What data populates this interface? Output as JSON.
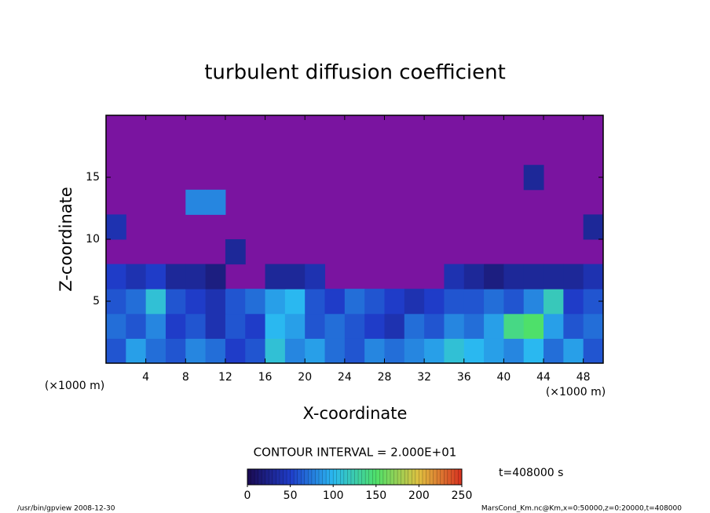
{
  "chart_data": {
    "type": "heatmap",
    "title": "turbulent diffusion coefficient",
    "x_label": "X-coordinate",
    "y_label": "Z-coordinate",
    "x_unit_label": "(×1000 m)",
    "xlim": [
      0,
      50
    ],
    "xticks": [
      4,
      8,
      12,
      16,
      20,
      24,
      28,
      32,
      36,
      40,
      44,
      48
    ],
    "ylim": [
      0,
      20
    ],
    "yticks": [
      5,
      10,
      15
    ],
    "z": [
      [
        60,
        90,
        70,
        60,
        80,
        70,
        50,
        60,
        110,
        80,
        90,
        70,
        60,
        80,
        70,
        80,
        90,
        110,
        100,
        90,
        80,
        100,
        70,
        90,
        60
      ],
      [
        70,
        60,
        80,
        50,
        60,
        40,
        60,
        50,
        100,
        90,
        60,
        70,
        60,
        50,
        40,
        70,
        60,
        80,
        70,
        90,
        140,
        150,
        90,
        60,
        70
      ],
      [
        60,
        70,
        110,
        60,
        50,
        40,
        60,
        70,
        90,
        100,
        60,
        50,
        70,
        60,
        50,
        40,
        50,
        60,
        60,
        70,
        60,
        80,
        120,
        50,
        60
      ],
      [
        50,
        40,
        50,
        30,
        30,
        20,
        null,
        null,
        30,
        30,
        40,
        null,
        null,
        null,
        null,
        null,
        null,
        40,
        30,
        20,
        30,
        30,
        30,
        30,
        40
      ],
      [
        null,
        null,
        null,
        null,
        null,
        null,
        30,
        null,
        null,
        null,
        null,
        null,
        null,
        null,
        null,
        null,
        null,
        null,
        null,
        null,
        null,
        null,
        null,
        null,
        null
      ],
      [
        40,
        null,
        null,
        null,
        null,
        null,
        null,
        null,
        null,
        null,
        null,
        null,
        null,
        null,
        null,
        null,
        null,
        null,
        null,
        null,
        null,
        null,
        null,
        null,
        30
      ],
      [
        null,
        null,
        null,
        null,
        80,
        80,
        null,
        null,
        null,
        null,
        null,
        null,
        null,
        null,
        null,
        null,
        null,
        null,
        null,
        null,
        null,
        null,
        null,
        null,
        null
      ],
      [
        null,
        null,
        null,
        null,
        null,
        null,
        null,
        null,
        null,
        null,
        null,
        null,
        null,
        null,
        null,
        null,
        null,
        null,
        null,
        null,
        null,
        30,
        null,
        null,
        null
      ],
      [
        null,
        null,
        null,
        null,
        null,
        null,
        null,
        null,
        null,
        null,
        null,
        null,
        null,
        null,
        null,
        null,
        null,
        null,
        null,
        null,
        null,
        null,
        null,
        null,
        null
      ],
      [
        null,
        null,
        null,
        null,
        null,
        null,
        null,
        null,
        null,
        null,
        null,
        null,
        null,
        null,
        null,
        null,
        null,
        null,
        null,
        null,
        null,
        null,
        null,
        null,
        null
      ]
    ],
    "zlim": [
      0,
      250
    ],
    "zticks": [
      0,
      50,
      100,
      150,
      200,
      250
    ],
    "colormap": [
      "#1a0a50",
      "#1f3cc8",
      "#2ab8f0",
      "#4ee06a",
      "#e0c040",
      "#d83020"
    ],
    "background_color": "#7a14a0",
    "contour_label": "CONTOUR INTERVAL = 2.000E+01",
    "time_label": "t=408000 s",
    "footer_left": "/usr/bin/gpview  2008-12-30",
    "footer_right": "MarsCond_Km.nc@Km,x=0:50000,z=0:20000,t=408000"
  }
}
